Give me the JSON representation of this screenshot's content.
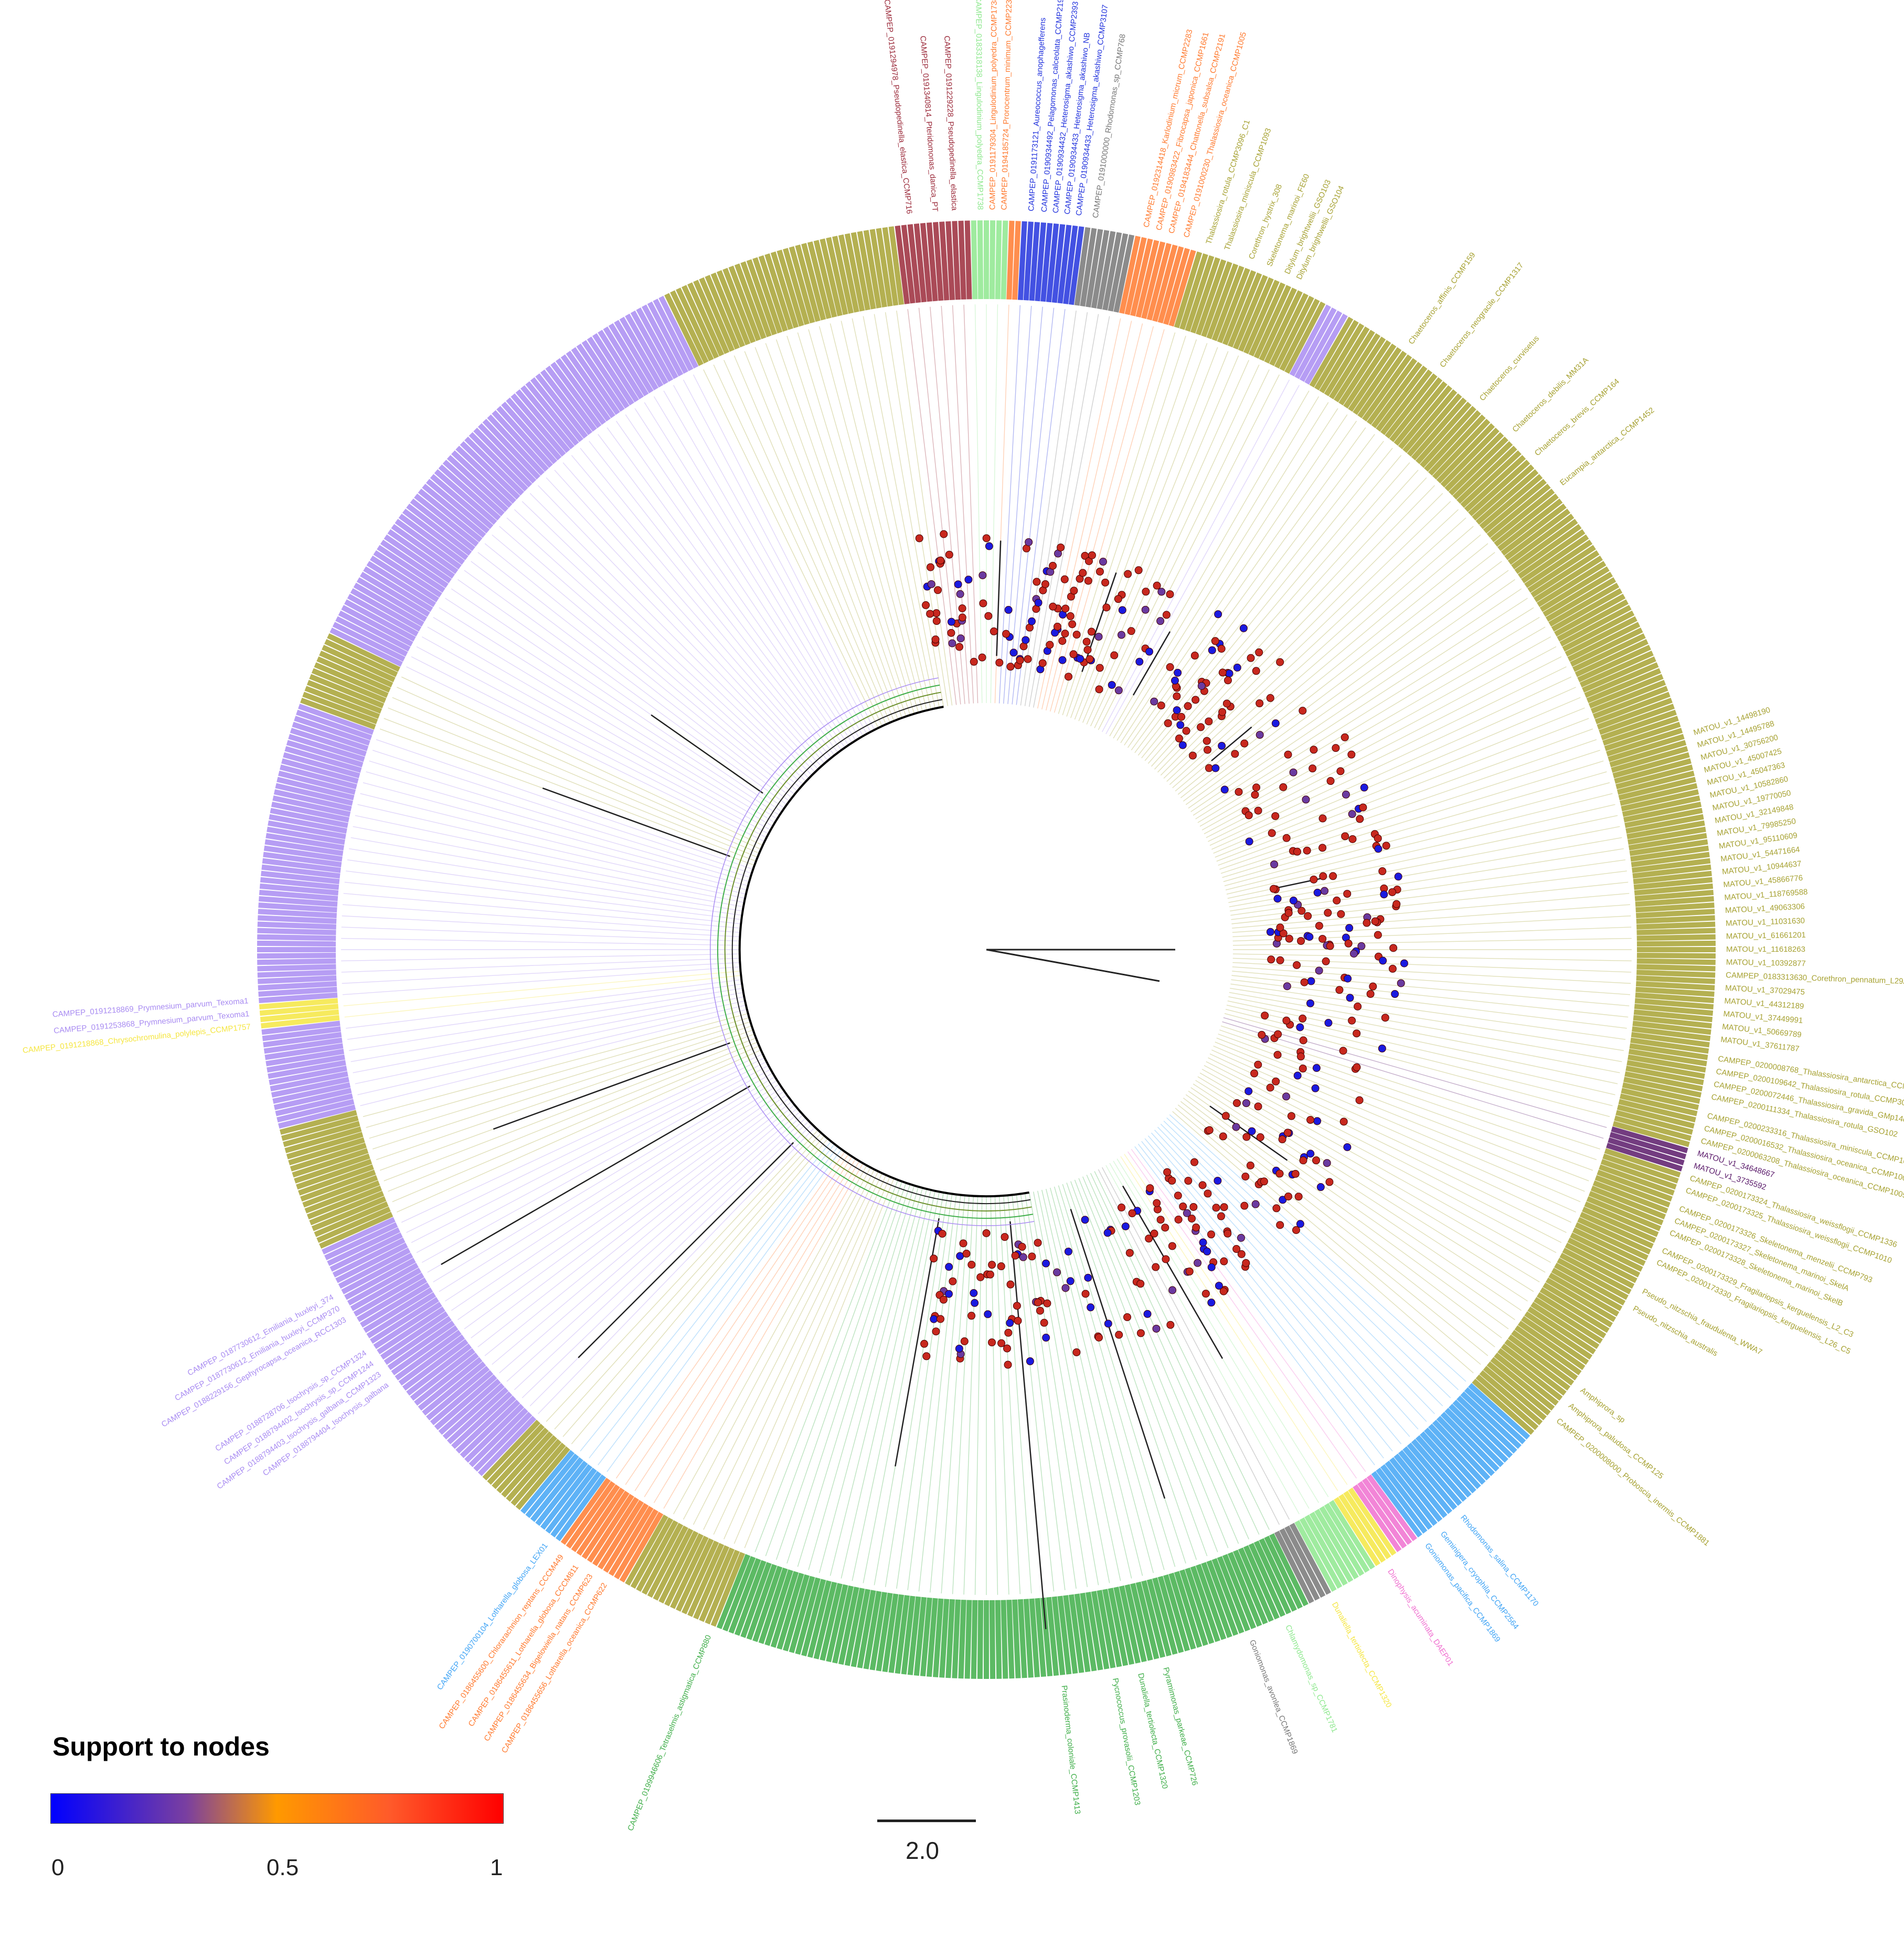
{
  "legend": {
    "title": "Support to nodes",
    "min_label": "0",
    "mid_label": "0.5",
    "max_label": "1",
    "gradient_colors": [
      "#0000ff",
      "#7a3fa0",
      "#ff9900",
      "#ff5a2a",
      "#ff0000"
    ]
  },
  "scale_bar": {
    "label": "2.0"
  },
  "clade_colors": {
    "diatom": "#a7a233",
    "haptophyte": "#a98cf2",
    "dinoflagellate": "#3fae49",
    "cryptophyte": "#42a5f5",
    "pelagophyte": "#2233dd",
    "raphidophyte": "#ff7a2f",
    "dictyochophyte": "#9b2a3a",
    "chlorophyte": "#8ee88e",
    "other_grey": "#777777",
    "yellow": "#f5e642",
    "pink": "#f070d0",
    "dark_purple": "#5a1a6a"
  },
  "labeled_leaves": [
    {
      "text": "CAMPEP_0191294978_Pseudopedinella_elastica_CCMP716",
      "clade": "dictyochophyte",
      "angle": -96
    },
    {
      "text": "CAMPEP_0191340814_Pteridomonas_danica_PT",
      "clade": "dictyochophyte",
      "angle": -94
    },
    {
      "text": "CAMPEP_0191229228_Pseudopedinella_elastica",
      "clade": "dictyochophyte",
      "angle": -92.5
    },
    {
      "text": "CAMPEP_0183318138_Lingulodinium_polyedra_CCMP1738",
      "clade": "chlorophyte",
      "angle": -90.5
    },
    {
      "text": "CAMPEP_0191179304_Lingulodinium_polyedra_CCMP1738",
      "clade": "raphidophyte",
      "angle": -89.5
    },
    {
      "text": "CAMPEP_0194185724_Prorocentrum_minimum_CCMP2233",
      "clade": "raphidophyte",
      "angle": -88.6
    },
    {
      "text": "CAMPEP_0191173121_Aureococcus_anophagefferens",
      "clade": "pelagophyte",
      "angle": -86.5
    },
    {
      "text": "CAMPEP_0190934492_Pelagomonas_calceolata_CCMP2191",
      "clade": "pelagophyte",
      "angle": -85.5
    },
    {
      "text": "CAMPEP_0190934432_Heterosigma_akashiwo_CCMP2393",
      "clade": "pelagophyte",
      "angle": -84.6
    },
    {
      "text": "CAMPEP_0190934433_Heterosigma_akashiwo_NB",
      "clade": "pelagophyte",
      "angle": -83.7
    },
    {
      "text": "CAMPEP_0190934433_Heterosigma_akashiwo_CCMP3107",
      "clade": "pelagophyte",
      "angle": -82.8
    },
    {
      "text": "CAMPEP_0191000000_Rhodomonas_sp_CCMP768",
      "clade": "other_grey",
      "angle": -81.5
    },
    {
      "text": "CAMPEP_0192314418_Karlodinium_micrum_CCMP2283",
      "clade": "raphidophyte",
      "angle": -77.5
    },
    {
      "text": "CAMPEP_0190983422_Fibrocapsa_japonica_CCMP1661",
      "clade": "raphidophyte",
      "angle": -76.5
    },
    {
      "text": "CAMPEP_0194183444_Chattonella_subsalsa_CCMP2191",
      "clade": "raphidophyte",
      "angle": -75.5
    },
    {
      "text": "CAMPEP_0191000230_Thalassiosira_oceanica_CCMP1005",
      "clade": "raphidophyte",
      "angle": -74.3
    },
    {
      "text": "Thalassiosira_rotula_CCMP3096_C1",
      "clade": "diatom",
      "angle": -72.5
    },
    {
      "text": "Thalassiosira_miniscula_CCMP1093",
      "clade": "diatom",
      "angle": -71
    },
    {
      "text": "Corethron_hystrix_308",
      "clade": "diatom",
      "angle": -69
    },
    {
      "text": "Skeletonema_marinoi_FE60",
      "clade": "diatom",
      "angle": -67.5
    },
    {
      "text": "Ditylum_brightwellii_GSO103",
      "clade": "diatom",
      "angle": -66
    },
    {
      "text": "Ditylum_brightwellii_GSO104",
      "clade": "diatom",
      "angle": -65
    },
    {
      "text": "Chaetoceros_affinis_CCMP159",
      "clade": "diatom",
      "angle": -55
    },
    {
      "text": "Chaetoceros_neogracile_CCMP1317",
      "clade": "diatom",
      "angle": -52
    },
    {
      "text": "Chaetoceros_curvisetus",
      "clade": "diatom",
      "angle": -48
    },
    {
      "text": "Chaetoceros_debilis_MM31A",
      "clade": "diatom",
      "angle": -44.5
    },
    {
      "text": "Chaetoceros_brevis_CCMP164",
      "clade": "diatom",
      "angle": -42
    },
    {
      "text": "Eucampia_antarctica_CCMP1452",
      "clade": "diatom",
      "angle": -39
    },
    {
      "text": "MATOU_v1_14498190",
      "clade": "diatom",
      "angle": -17
    },
    {
      "text": "MATOU_v1_14495788",
      "clade": "diatom",
      "angle": -16
    },
    {
      "text": "MATOU_v1_30756200",
      "clade": "diatom",
      "angle": -15
    },
    {
      "text": "MATOU_v1_45007425",
      "clade": "diatom",
      "angle": -14
    },
    {
      "text": "MATOU_v1_45047363",
      "clade": "diatom",
      "angle": -13
    },
    {
      "text": "MATOU_v1_10582860",
      "clade": "diatom",
      "angle": -12
    },
    {
      "text": "MATOU_v1_19770050",
      "clade": "diatom",
      "angle": -11
    },
    {
      "text": "MATOU_v1_32149848",
      "clade": "diatom",
      "angle": -10
    },
    {
      "text": "MATOU_v1_79985250",
      "clade": "diatom",
      "angle": -9
    },
    {
      "text": "MATOU_v1_95110609",
      "clade": "diatom",
      "angle": -8
    },
    {
      "text": "MATOU_v1_54471664",
      "clade": "diatom",
      "angle": -7
    },
    {
      "text": "MATOU_v1_10944637",
      "clade": "diatom",
      "angle": -6
    },
    {
      "text": "MATOU_v1_45866776",
      "clade": "diatom",
      "angle": -5
    },
    {
      "text": "MATOU_v1_118769588",
      "clade": "diatom",
      "angle": -4
    },
    {
      "text": "MATOU_v1_49063306",
      "clade": "diatom",
      "angle": -3
    },
    {
      "text": "MATOU_v1_11031630",
      "clade": "diatom",
      "angle": -2
    },
    {
      "text": "MATOU_v1_61661201",
      "clade": "diatom",
      "angle": -1
    },
    {
      "text": "MATOU_v1_11618263",
      "clade": "diatom",
      "angle": 0
    },
    {
      "text": "MATOU_v1_10392877",
      "clade": "diatom",
      "angle": 1
    },
    {
      "text": "CAMPEP_0183313630_Corethron_pennatum_L29A3",
      "clade": "diatom",
      "angle": 2
    },
    {
      "text": "MATOU_v1_37029475",
      "clade": "diatom",
      "angle": 3
    },
    {
      "text": "MATOU_v1_44312189",
      "clade": "diatom",
      "angle": 4
    },
    {
      "text": "MATOU_v1_37449991",
      "clade": "diatom",
      "angle": 5
    },
    {
      "text": "MATOU_v1_50669789",
      "clade": "diatom",
      "angle": 6
    },
    {
      "text": "MATOU_v1_37611787",
      "clade": "diatom",
      "angle": 7
    },
    {
      "text": "CAMPEP_0200008768_Thalassiosira_antarctica_CCMP982",
      "clade": "diatom",
      "angle": 8.5
    },
    {
      "text": "CAMPEP_0200109642_Thalassiosira_rotula_CCMP3096",
      "clade": "diatom",
      "angle": 9.5
    },
    {
      "text": "CAMPEP_0200072446_Thalassiosira_gravida_GMp14c1",
      "clade": "diatom",
      "angle": 10.5
    },
    {
      "text": "CAMPEP_0200111334_Thalassiosira_rotula_GSO102",
      "clade": "diatom",
      "angle": 11.5
    },
    {
      "text": "CAMPEP_0200233316_Thalassiosira_miniscula_CCMP1093",
      "clade": "diatom",
      "angle": 13
    },
    {
      "text": "CAMPEP_0200016532_Thalassiosira_oceanica_CCMP1005",
      "clade": "diatom",
      "angle": 14
    },
    {
      "text": "CAMPEP_0200063208_Thalassiosira_oceanica_CCMP1005",
      "clade": "diatom",
      "angle": 15
    },
    {
      "text": "MATOU_v1_34648667",
      "clade": "dark_purple",
      "angle": 16
    },
    {
      "text": "MATOU_v1_3735592",
      "clade": "dark_purple",
      "angle": 17
    },
    {
      "text": "CAMPEP_0200173324_Thalassiosira_weissflogii_CCMP1336",
      "clade": "diatom",
      "angle": 18
    },
    {
      "text": "CAMPEP_0200173325_Thalassiosira_weissflogii_CCMP1010",
      "clade": "diatom",
      "angle": 19
    },
    {
      "text": "CAMPEP_0200173326_Skeletonema_menzelii_CCMP793",
      "clade": "diatom",
      "angle": 20.5
    },
    {
      "text": "CAMPEP_0200173327_Skeletonema_marinoi_SkelA",
      "clade": "diatom",
      "angle": 21.5
    },
    {
      "text": "CAMPEP_0200173328_Skeletonema_marinoi_SkelB",
      "clade": "diatom",
      "angle": 22.5
    },
    {
      "text": "CAMPEP_0200173329_Fragilariopsis_kerguelensis_L2_C3",
      "clade": "diatom",
      "angle": 24
    },
    {
      "text": "CAMPEP_0200173330_Fragilariopsis_kerguelensis_L26_C5",
      "clade": "diatom",
      "angle": 25
    },
    {
      "text": "Pseudo_nitzschia_fraudulenta_WWA7",
      "clade": "diatom",
      "angle": 27.5
    },
    {
      "text": "Pseudo_nitzschia_australis",
      "clade": "diatom",
      "angle": 29
    },
    {
      "text": "Amphiprora_sp",
      "clade": "diatom",
      "angle": 36.5
    },
    {
      "text": "Amphiprora_paludosa_CCMP125",
      "clade": "diatom",
      "angle": 38
    },
    {
      "text": "CAMPEP_0200008000_Proboscia_inermis_CCMP1881",
      "clade": "diatom",
      "angle": 39.5
    },
    {
      "text": "Rhodomonas_salina_CCMP1170",
      "clade": "cryptophyte",
      "angle": 50
    },
    {
      "text": "Geminigera_cryophila_CCMP2564",
      "clade": "cryptophyte",
      "angle": 52
    },
    {
      "text": "Goniomonas_pacifica_CCMP1869",
      "clade": "cryptophyte",
      "angle": 53.5
    },
    {
      "text": "Dinophysis_acuminata_DAEP01",
      "clade": "pink",
      "angle": 57
    },
    {
      "text": "Dunaliella_tertiolecta_CCMP1320",
      "clade": "yellow",
      "angle": 62
    },
    {
      "text": "Chlamydomonas_sp_CCMP1781",
      "clade": "chlorophyte",
      "angle": 66
    },
    {
      "text": "Goniomonas_avonlea_CCMP1869",
      "clade": "other_grey",
      "angle": 69
    },
    {
      "text": "Pyramimonas_parkeae_CCMP726",
      "clade": "dinoflagellate",
      "angle": 76
    },
    {
      "text": "Dunaliella_tertiolecta_CCMP1320",
      "clade": "dinoflagellate",
      "angle": 78
    },
    {
      "text": "Pycnococcus_provasolii_CCMP1203",
      "clade": "dinoflagellate",
      "angle": 80
    },
    {
      "text": "Prasinoderma_coloniale_CCMP1413",
      "clade": "dinoflagellate",
      "angle": 84
    },
    {
      "text": "CAMPEP_0199946606_Tetraselmis_astigmatica_CCMP880",
      "clade": "dinoflagellate",
      "angle": 112
    },
    {
      "text": "CAMPEP_0186455656_Lotharella_oceanica_CCMP622",
      "clade": "raphidophyte",
      "angle": 121
    },
    {
      "text": "CAMPEP_0186455634_Bigelowiella_natans_CCMP623",
      "clade": "raphidophyte",
      "angle": 122.3
    },
    {
      "text": "CAMPEP_0186455611_Lotharella_globosa_CCCM811",
      "clade": "raphidophyte",
      "angle": 123.6
    },
    {
      "text": "CAMPEP_0186455600_Chlorarachnion_reptans_CCCM449",
      "clade": "raphidophyte",
      "angle": 125
    },
    {
      "text": "CAMPEP_0190700104_Lotharella_globosa_LEX01",
      "clade": "cryptophyte",
      "angle": 126.5
    },
    {
      "text": "CAMPEP_0188794404_Isochrysis_galbana",
      "clade": "haptophyte",
      "angle": 144
    },
    {
      "text": "CAMPEP_0188794403_Isochrysis_galbana_CCMP1323",
      "clade": "haptophyte",
      "angle": 145
    },
    {
      "text": "CAMPEP_0188794402_Isochrysis_sp_CCMP1244",
      "clade": "haptophyte",
      "angle": 146
    },
    {
      "text": "CAMPEP_0188728706_Isochrysis_sp_CCMP1324",
      "clade": "haptophyte",
      "angle": 147
    },
    {
      "text": "CAMPEP_0188229156_Gephyrocapsa_oceanica_RCC1303",
      "clade": "haptophyte",
      "angle": 150
    },
    {
      "text": "CAMPEP_0187730612_Emiliania_huxleyi_CCMP370",
      "clade": "haptophyte",
      "angle": 151
    },
    {
      "text": "CAMPEP_0187730612_Emiliania_huxleyi_374",
      "clade": "haptophyte",
      "angle": 152
    },
    {
      "text": "CAMPEP_0191253868_Prymnesium_parvum_Texoma1",
      "clade": "haptophyte",
      "angle": 175
    },
    {
      "text": "CAMPEP_0191218869_Prymnesium_parvum_Texoma1",
      "clade": "haptophyte",
      "angle": 176
    },
    {
      "text": "CAMPEP_0191218868_Chrysochromulina_polylepis_CCMP1757",
      "clade": "yellow",
      "angle": 174
    }
  ]
}
